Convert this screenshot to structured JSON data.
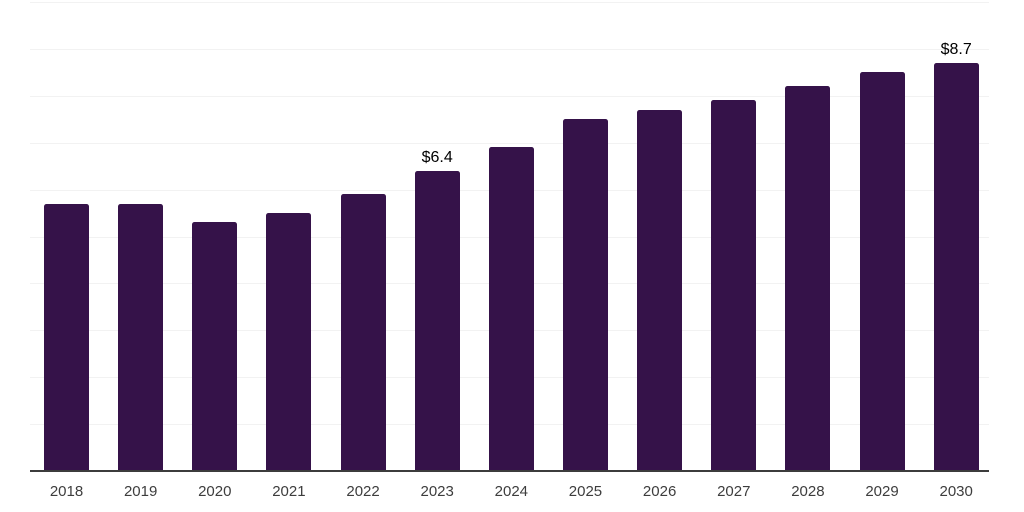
{
  "chart_data": {
    "type": "bar",
    "categories": [
      "2018",
      "2019",
      "2020",
      "2021",
      "2022",
      "2023",
      "2024",
      "2025",
      "2026",
      "2027",
      "2028",
      "2029",
      "2030"
    ],
    "values": [
      5.7,
      5.7,
      5.3,
      5.5,
      5.9,
      6.4,
      6.9,
      7.5,
      7.7,
      7.9,
      8.2,
      8.5,
      8.7
    ],
    "point_labels": [
      "",
      "",
      "",
      "",
      "",
      "$6.4",
      "",
      "",
      "",
      "",
      "",
      "",
      "$8.7"
    ],
    "ylim": [
      0,
      10
    ],
    "grid": "horizontal",
    "grid_step": 1,
    "legend": "none",
    "colors": {
      "bar": "#351249",
      "gridline": "#f2f2f2",
      "axis_line": "#3c3c3c",
      "tick_label": "#3d3d3d",
      "data_label": "#000000",
      "background": "#ffffff"
    }
  }
}
